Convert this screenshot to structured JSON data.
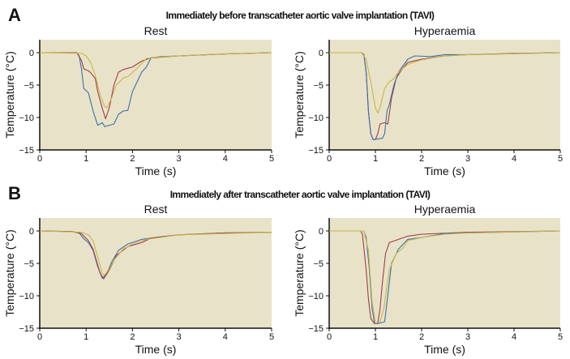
{
  "figure": {
    "panels": [
      {
        "letter": "A",
        "heading": "Immediately before transcatheter aortic valve implantation (TAVI)"
      },
      {
        "letter": "B",
        "heading": "Immediately after transcatheter aortic valve implantation (TAVI)"
      }
    ]
  },
  "chart_data": [
    {
      "type": "line",
      "panel": "A",
      "title": "Rest",
      "xlabel": "Time (s)",
      "ylabel": "Temperature (°C)",
      "xlim": [
        0,
        5
      ],
      "ylim": [
        -15,
        2
      ],
      "xticks": [
        0,
        1,
        2,
        3,
        4,
        5
      ],
      "yticks": [
        0,
        -5,
        -10,
        -15
      ],
      "background": "#e8e3c8",
      "grid": false,
      "series": [
        {
          "color": "#3d6fae",
          "points": [
            [
              0,
              0
            ],
            [
              0.8,
              0
            ],
            [
              0.85,
              -0.5
            ],
            [
              0.9,
              -2.5
            ],
            [
              0.95,
              -5.5
            ],
            [
              1.05,
              -6.2
            ],
            [
              1.15,
              -9
            ],
            [
              1.25,
              -11.2
            ],
            [
              1.3,
              -11
            ],
            [
              1.35,
              -10.8
            ],
            [
              1.4,
              -11.4
            ],
            [
              1.5,
              -11.2
            ],
            [
              1.6,
              -11
            ],
            [
              1.7,
              -9.5
            ],
            [
              1.8,
              -9
            ],
            [
              1.9,
              -8.9
            ],
            [
              2.0,
              -6
            ],
            [
              2.1,
              -4.5
            ],
            [
              2.2,
              -3
            ],
            [
              2.3,
              -2.2
            ],
            [
              2.4,
              -0.8
            ],
            [
              2.6,
              -0.6
            ],
            [
              3,
              -0.5
            ],
            [
              4,
              -0.2
            ],
            [
              5,
              0
            ]
          ]
        },
        {
          "color": "#a33a4c",
          "points": [
            [
              0,
              0
            ],
            [
              0.8,
              0
            ],
            [
              0.9,
              -1.2
            ],
            [
              0.95,
              -2.5
            ],
            [
              1.05,
              -2.8
            ],
            [
              1.1,
              -3.1
            ],
            [
              1.2,
              -4
            ],
            [
              1.25,
              -6
            ],
            [
              1.35,
              -8.6
            ],
            [
              1.42,
              -10.2
            ],
            [
              1.5,
              -8.5
            ],
            [
              1.6,
              -5
            ],
            [
              1.7,
              -3
            ],
            [
              1.8,
              -2.6
            ],
            [
              2.0,
              -2.2
            ],
            [
              2.2,
              -1.3
            ],
            [
              2.4,
              -0.8
            ],
            [
              3,
              -0.5
            ],
            [
              4,
              -0.2
            ],
            [
              5,
              0
            ]
          ]
        },
        {
          "color": "#c9b548",
          "points": [
            [
              0,
              0
            ],
            [
              0.9,
              -0.1
            ],
            [
              1.0,
              -0.5
            ],
            [
              1.1,
              -1.5
            ],
            [
              1.2,
              -3.5
            ],
            [
              1.3,
              -6.5
            ],
            [
              1.4,
              -8.3
            ],
            [
              1.45,
              -8.5
            ],
            [
              1.55,
              -7
            ],
            [
              1.65,
              -5
            ],
            [
              1.8,
              -3.9
            ],
            [
              1.9,
              -3.7
            ],
            [
              2.1,
              -2.4
            ],
            [
              2.3,
              -0.9
            ],
            [
              2.5,
              -0.7
            ],
            [
              3,
              -0.5
            ],
            [
              4,
              -0.2
            ],
            [
              5,
              0
            ]
          ]
        }
      ]
    },
    {
      "type": "line",
      "panel": "A",
      "title": "Hyperaemia",
      "xlabel": "Time (s)",
      "ylabel": "Temperature (°C)",
      "xlim": [
        0,
        5
      ],
      "ylim": [
        -15,
        2
      ],
      "xticks": [
        0,
        1,
        2,
        3,
        4,
        5
      ],
      "yticks": [
        0,
        -5,
        -10,
        -15
      ],
      "background": "#e8e3c8",
      "grid": false,
      "series": [
        {
          "color": "#a33a4c",
          "points": [
            [
              0,
              0
            ],
            [
              0.7,
              0
            ],
            [
              0.75,
              -0.3
            ],
            [
              0.8,
              -3
            ],
            [
              0.85,
              -9
            ],
            [
              0.9,
              -12.5
            ],
            [
              0.95,
              -13.4
            ],
            [
              1.0,
              -13.4
            ],
            [
              1.05,
              -12.5
            ],
            [
              1.1,
              -11
            ],
            [
              1.2,
              -10.8
            ],
            [
              1.27,
              -11
            ],
            [
              1.35,
              -7
            ],
            [
              1.45,
              -4
            ],
            [
              1.55,
              -2.8
            ],
            [
              1.7,
              -1.5
            ],
            [
              2,
              -1
            ],
            [
              2.5,
              -0.5
            ],
            [
              3,
              -0.3
            ],
            [
              4,
              -0.1
            ],
            [
              5,
              0
            ]
          ]
        },
        {
          "color": "#3d6fae",
          "points": [
            [
              0,
              0
            ],
            [
              0.7,
              0
            ],
            [
              0.75,
              -0.3
            ],
            [
              0.8,
              -3
            ],
            [
              0.85,
              -9
            ],
            [
              0.9,
              -12.5
            ],
            [
              0.95,
              -13.4
            ],
            [
              1.05,
              -13.3
            ],
            [
              1.15,
              -13.2
            ],
            [
              1.2,
              -12.5
            ],
            [
              1.25,
              -9
            ],
            [
              1.3,
              -8
            ],
            [
              1.4,
              -5
            ],
            [
              1.5,
              -3
            ],
            [
              1.7,
              -1
            ],
            [
              1.85,
              -0.5
            ],
            [
              2.2,
              -0.6
            ],
            [
              2.5,
              -0.3
            ],
            [
              3,
              -0.3
            ],
            [
              5,
              0
            ]
          ]
        },
        {
          "color": "#c9b548",
          "points": [
            [
              0,
              0
            ],
            [
              0.7,
              0
            ],
            [
              0.8,
              -1
            ],
            [
              0.9,
              -4.5
            ],
            [
              1.0,
              -8.5
            ],
            [
              1.05,
              -9.3
            ],
            [
              1.1,
              -8.5
            ],
            [
              1.2,
              -5.5
            ],
            [
              1.3,
              -4.5
            ],
            [
              1.4,
              -4
            ],
            [
              1.5,
              -3
            ],
            [
              1.7,
              -1.8
            ],
            [
              2,
              -1.1
            ],
            [
              2.5,
              -0.5
            ],
            [
              3,
              -0.3
            ],
            [
              5,
              0
            ]
          ]
        }
      ]
    },
    {
      "type": "line",
      "panel": "B",
      "title": "Rest",
      "xlabel": "Time (s)",
      "ylabel": "Temperature (°C)",
      "xlim": [
        0,
        5
      ],
      "ylim": [
        -15,
        2
      ],
      "xticks": [
        0,
        1,
        2,
        3,
        4,
        5
      ],
      "yticks": [
        0,
        -5,
        -10,
        -15
      ],
      "background": "#e8e3c8",
      "grid": false,
      "series": [
        {
          "color": "#3d6fae",
          "points": [
            [
              0,
              0
            ],
            [
              0.7,
              -0.1
            ],
            [
              0.85,
              -0.3
            ],
            [
              0.95,
              -1.2
            ],
            [
              1.05,
              -1.8
            ],
            [
              1.15,
              -3
            ],
            [
              1.25,
              -5.5
            ],
            [
              1.35,
              -7.3
            ],
            [
              1.45,
              -6.5
            ],
            [
              1.55,
              -4.8
            ],
            [
              1.7,
              -3
            ],
            [
              1.9,
              -2
            ],
            [
              2.2,
              -1.3
            ],
            [
              2.6,
              -0.9
            ],
            [
              3,
              -0.6
            ],
            [
              4,
              -0.3
            ],
            [
              5,
              -0.2
            ]
          ]
        },
        {
          "color": "#a33a4c",
          "points": [
            [
              0,
              0
            ],
            [
              0.7,
              -0.1
            ],
            [
              0.9,
              -0.4
            ],
            [
              1.05,
              -1.5
            ],
            [
              1.15,
              -2.8
            ],
            [
              1.3,
              -6.5
            ],
            [
              1.38,
              -7.4
            ],
            [
              1.5,
              -6
            ],
            [
              1.65,
              -3.8
            ],
            [
              1.9,
              -2.4
            ],
            [
              2.2,
              -1.8
            ],
            [
              2.4,
              -1.1
            ],
            [
              3,
              -0.6
            ],
            [
              4,
              -0.3
            ],
            [
              5,
              -0.2
            ]
          ]
        },
        {
          "color": "#c9b548",
          "points": [
            [
              0,
              0
            ],
            [
              0.9,
              -0.2
            ],
            [
              1.05,
              -0.6
            ],
            [
              1.15,
              -1.5
            ],
            [
              1.25,
              -4
            ],
            [
              1.35,
              -6.6
            ],
            [
              1.4,
              -6.8
            ],
            [
              1.5,
              -5.8
            ],
            [
              1.6,
              -4.5
            ],
            [
              1.8,
              -2.8
            ],
            [
              2,
              -2
            ],
            [
              2.3,
              -1.3
            ],
            [
              3,
              -0.6
            ],
            [
              5,
              -0.2
            ]
          ]
        }
      ]
    },
    {
      "type": "line",
      "panel": "B",
      "title": "Hyperaemia",
      "xlabel": "Time (s)",
      "ylabel": "Temperature (°C)",
      "xlim": [
        0,
        5
      ],
      "ylim": [
        -15,
        2
      ],
      "xticks": [
        0,
        1,
        2,
        3,
        4,
        5
      ],
      "yticks": [
        0,
        -5,
        -10,
        -15
      ],
      "background": "#e8e3c8",
      "grid": false,
      "series": [
        {
          "color": "#a33a4c",
          "points": [
            [
              0,
              0
            ],
            [
              0.68,
              0
            ],
            [
              0.72,
              -0.5
            ],
            [
              0.8,
              -6
            ],
            [
              0.85,
              -10.5
            ],
            [
              0.9,
              -13.5
            ],
            [
              0.98,
              -14.3
            ],
            [
              1.05,
              -14.2
            ],
            [
              1.1,
              -12
            ],
            [
              1.15,
              -8
            ],
            [
              1.22,
              -3.5
            ],
            [
              1.3,
              -1.8
            ],
            [
              1.5,
              -1.3
            ],
            [
              1.7,
              -0.8
            ],
            [
              2,
              -0.5
            ],
            [
              3,
              -0.2
            ],
            [
              5,
              0
            ]
          ]
        },
        {
          "color": "#3d6fae",
          "points": [
            [
              0,
              0
            ],
            [
              0.75,
              0
            ],
            [
              0.8,
              -1
            ],
            [
              0.87,
              -6
            ],
            [
              0.93,
              -12
            ],
            [
              0.98,
              -14.2
            ],
            [
              1.05,
              -14.3
            ],
            [
              1.2,
              -14
            ],
            [
              1.25,
              -11
            ],
            [
              1.35,
              -5
            ],
            [
              1.5,
              -2.8
            ],
            [
              1.7,
              -1.3
            ],
            [
              2,
              -1
            ],
            [
              2.5,
              -0.4
            ],
            [
              3,
              -0.3
            ],
            [
              5,
              0
            ]
          ]
        },
        {
          "color": "#c9b548",
          "points": [
            [
              0,
              0
            ],
            [
              0.75,
              0
            ],
            [
              0.85,
              -3
            ],
            [
              0.93,
              -11
            ],
            [
              1.0,
              -14.2
            ],
            [
              1.1,
              -14
            ],
            [
              1.18,
              -12
            ],
            [
              1.3,
              -6
            ],
            [
              1.45,
              -3.5
            ],
            [
              1.6,
              -2.6
            ],
            [
              1.7,
              -1.5
            ],
            [
              2,
              -1
            ],
            [
              2.5,
              -0.5
            ],
            [
              3,
              -0.3
            ],
            [
              5,
              0
            ]
          ]
        }
      ]
    }
  ]
}
